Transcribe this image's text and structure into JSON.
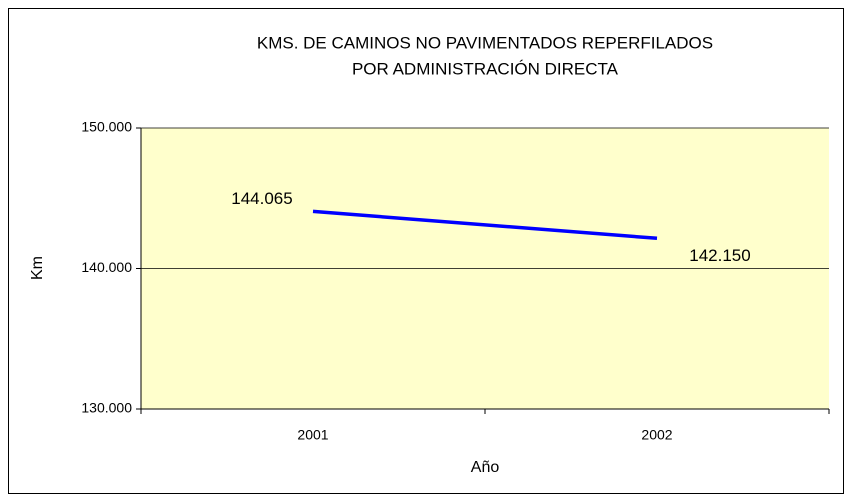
{
  "chart_data": {
    "type": "line",
    "title": [
      "KMS. DE CAMINOS NO PAVIMENTADOS REPERFILADOS",
      "POR ADMINISTRACIÓN DIRECTA"
    ],
    "x_label": "Año",
    "y_label": "Km",
    "categories": [
      "2001",
      "2002"
    ],
    "series": [
      {
        "name": "Km",
        "color": "#0000ff",
        "values": [
          144065,
          142150
        ],
        "value_labels": [
          "144.065",
          "142.150"
        ]
      }
    ],
    "ylim": [
      130000,
      150000
    ],
    "yticks": [
      {
        "value": 130000,
        "label": "130.000"
      },
      {
        "value": 140000,
        "label": "140.000"
      },
      {
        "value": 150000,
        "label": "150.000"
      }
    ],
    "grid": true,
    "plot_background": "#ffffcc"
  }
}
